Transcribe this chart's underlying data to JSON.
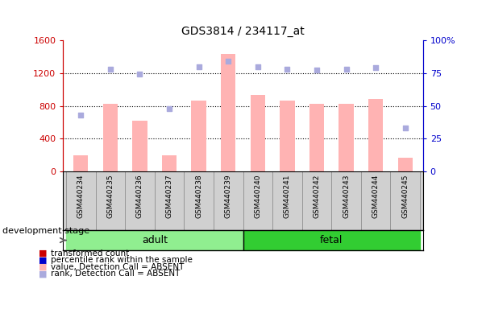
{
  "title": "GDS3814 / 234117_at",
  "categories": [
    "GSM440234",
    "GSM440235",
    "GSM440236",
    "GSM440237",
    "GSM440238",
    "GSM440239",
    "GSM440240",
    "GSM440241",
    "GSM440242",
    "GSM440243",
    "GSM440244",
    "GSM440245"
  ],
  "bar_values": [
    200,
    820,
    620,
    200,
    860,
    1430,
    930,
    860,
    820,
    820,
    880,
    170
  ],
  "bar_colors_absent": "#ffb3b3",
  "rank_values": [
    43,
    78,
    74,
    48,
    80,
    84,
    80,
    78,
    77,
    78,
    79,
    33
  ],
  "rank_colors_absent": "#aaaadd",
  "ylim_left": [
    0,
    1600
  ],
  "ylim_right": [
    0,
    100
  ],
  "yticks_left": [
    0,
    400,
    800,
    1200,
    1600
  ],
  "yticks_right": [
    0,
    25,
    50,
    75,
    100
  ],
  "ytick_labels_left": [
    "0",
    "400",
    "800",
    "1200",
    "1600"
  ],
  "ytick_labels_right": [
    "0",
    "25",
    "50",
    "75",
    "100%"
  ],
  "adult_count": 6,
  "fetal_count": 6,
  "adult_color": "#90ee90",
  "fetal_color": "#32cd32",
  "stage_label": "development stage",
  "left_axis_color": "#cc0000",
  "right_axis_color": "#0000cc",
  "bar_width": 0.5,
  "cat_bg_color": "#d0d0d0",
  "legend_items": [
    {
      "label": "transformed count",
      "color": "#cc0000"
    },
    {
      "label": "percentile rank within the sample",
      "color": "#0000cc"
    },
    {
      "label": "value, Detection Call = ABSENT",
      "color": "#ffb3b3"
    },
    {
      "label": "rank, Detection Call = ABSENT",
      "color": "#aaaadd"
    }
  ],
  "fig_width": 6.03,
  "fig_height": 3.84,
  "dpi": 100
}
